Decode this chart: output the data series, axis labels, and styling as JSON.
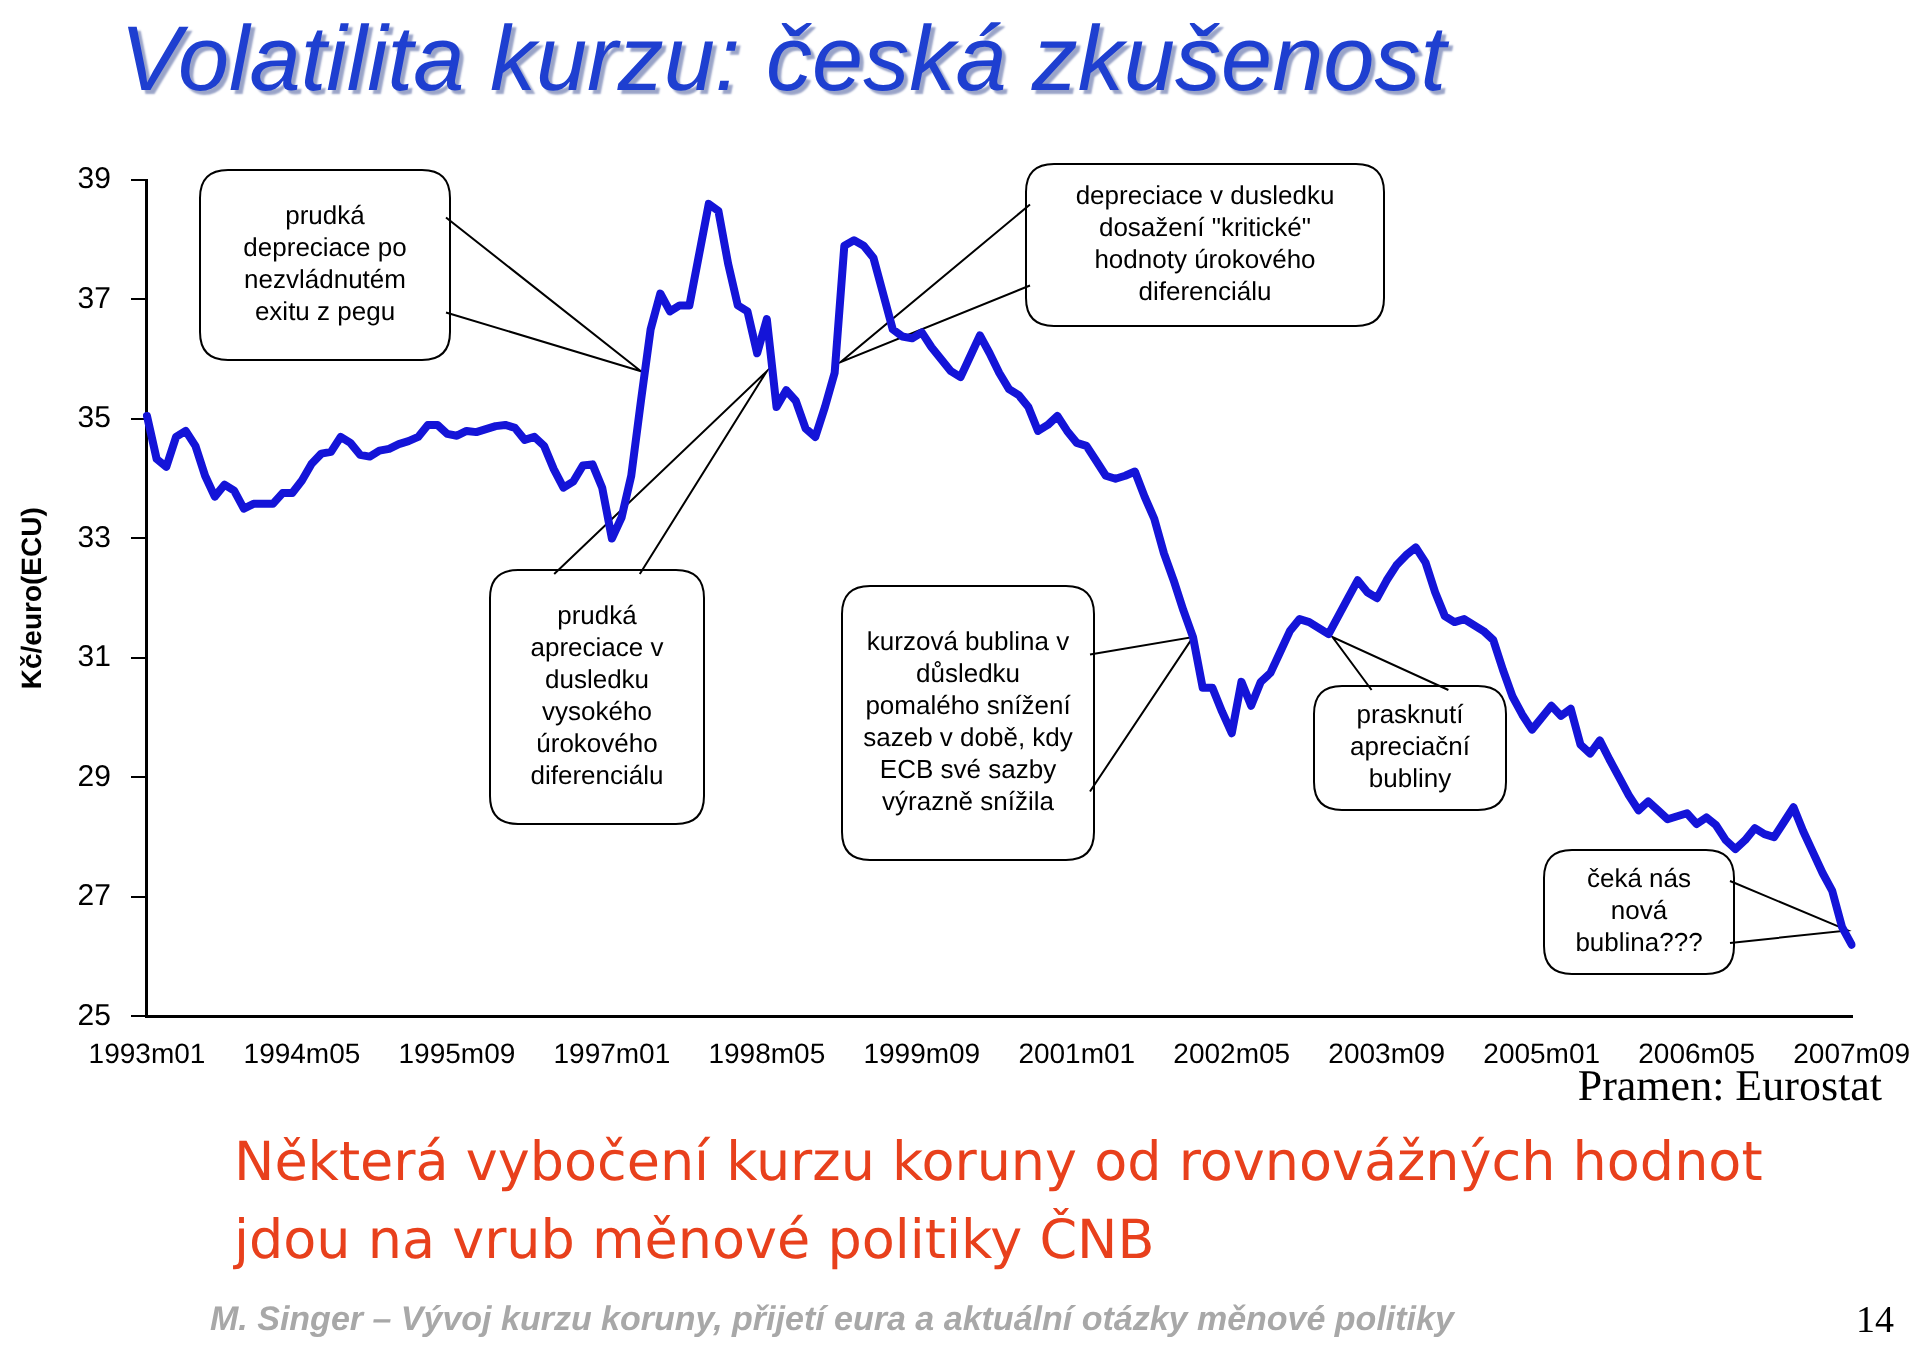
{
  "chart_data": {
    "type": "line",
    "title": "Volatilita kurzu: česká zkušenost",
    "ylabel": "Kč/euro(ECU)",
    "categories": [
      "1993m01",
      null,
      null,
      null,
      null,
      null,
      null,
      null,
      null,
      null,
      null,
      null,
      null,
      null,
      null,
      null,
      "1994m05",
      null,
      null,
      null,
      null,
      null,
      null,
      null,
      null,
      null,
      null,
      null,
      null,
      null,
      null,
      null,
      "1995m09",
      null,
      null,
      null,
      null,
      null,
      null,
      null,
      null,
      null,
      null,
      null,
      null,
      null,
      null,
      null,
      "1997m01",
      null,
      null,
      null,
      null,
      null,
      null,
      null,
      null,
      null,
      null,
      null,
      null,
      null,
      null,
      null,
      "1998m05",
      null,
      null,
      null,
      null,
      null,
      null,
      null,
      null,
      null,
      null,
      null,
      null,
      null,
      null,
      null,
      "1999m09",
      null,
      null,
      null,
      null,
      null,
      null,
      null,
      null,
      null,
      null,
      null,
      null,
      null,
      null,
      null,
      "2001m01",
      null,
      null,
      null,
      null,
      null,
      null,
      null,
      null,
      null,
      null,
      null,
      null,
      null,
      null,
      null,
      "2002m05",
      null,
      null,
      null,
      null,
      null,
      null,
      null,
      null,
      null,
      null,
      null,
      null,
      null,
      null,
      null,
      "2003m09",
      null,
      null,
      null,
      null,
      null,
      null,
      null,
      null,
      null,
      null,
      null,
      null,
      null,
      null,
      null,
      "2005m01",
      null,
      null,
      null,
      null,
      null,
      null,
      null,
      null,
      null,
      null,
      null,
      null,
      null,
      null,
      null,
      "2006m05",
      null,
      null,
      null,
      null,
      null,
      null,
      null,
      null,
      null,
      null,
      null,
      null,
      null,
      null,
      null,
      "2007m09"
    ],
    "series": [
      {
        "color": "#1414d8",
        "values": [
          35.05,
          34.33,
          34.2,
          34.7,
          34.8,
          34.55,
          34.05,
          33.7,
          33.9,
          33.8,
          33.5,
          33.58,
          33.58,
          33.58,
          33.76,
          33.76,
          33.97,
          34.25,
          34.42,
          34.45,
          34.7,
          34.6,
          34.4,
          34.37,
          34.47,
          34.5,
          34.58,
          34.63,
          34.7,
          34.9,
          34.9,
          34.75,
          34.72,
          34.8,
          34.78,
          34.83,
          34.88,
          34.9,
          34.85,
          34.65,
          34.7,
          34.55,
          34.16,
          33.85,
          33.95,
          34.22,
          34.24,
          33.85,
          33.0,
          33.35,
          34.05,
          35.3,
          36.5,
          37.1,
          36.8,
          36.9,
          36.9,
          37.75,
          38.6,
          38.48,
          37.6,
          36.9,
          36.8,
          36.1,
          36.67,
          35.2,
          35.48,
          35.3,
          34.84,
          34.7,
          35.2,
          35.77,
          37.9,
          37.99,
          37.9,
          37.7,
          37.1,
          36.5,
          36.38,
          36.35,
          36.45,
          36.2,
          36.0,
          35.8,
          35.7,
          36.05,
          36.4,
          36.1,
          35.77,
          35.5,
          35.4,
          35.2,
          34.8,
          34.9,
          35.05,
          34.8,
          34.6,
          34.55,
          34.3,
          34.05,
          34.0,
          34.05,
          34.12,
          33.7,
          33.33,
          32.75,
          32.3,
          31.8,
          31.35,
          30.5,
          30.5,
          30.1,
          29.74,
          30.6,
          30.2,
          30.6,
          30.75,
          31.1,
          31.45,
          31.65,
          31.6,
          31.5,
          31.4,
          31.7,
          32.0,
          32.3,
          32.1,
          32.0,
          32.3,
          32.55,
          32.72,
          32.85,
          32.6,
          32.1,
          31.7,
          31.6,
          31.65,
          31.55,
          31.45,
          31.3,
          30.8,
          30.35,
          30.05,
          29.8,
          30.0,
          30.2,
          30.03,
          30.15,
          29.55,
          29.4,
          29.62,
          29.3,
          29.0,
          28.7,
          28.45,
          28.6,
          28.45,
          28.3,
          28.35,
          28.4,
          28.22,
          28.33,
          28.2,
          27.95,
          27.8,
          27.95,
          28.15,
          28.05,
          28.0,
          28.25,
          28.5,
          28.1,
          27.75,
          27.4,
          27.1,
          26.5,
          26.2
        ]
      }
    ],
    "ylim": [
      25,
      39
    ],
    "yticks": [
      25,
      27,
      29,
      31,
      33,
      35,
      37,
      39
    ],
    "marker": "none",
    "line_style": "solid",
    "legend": false,
    "annotations": [
      "prudká depreciace po nezvládnutém exitu z pegu",
      "prudká apreciace v dusledku vysokého úrokového diferenciálu",
      "kurzová bublina v důsledku pomalého snížení sazeb v době, kdy ECB své sazby výrazně snížila",
      "depreciace v dusledku dosažení \"kritické\" hodnoty úrokového diferenciálu",
      "prasknutí apreciační bubliny",
      "čeká nás nová bublina???",
      "Pramen: Eurostat",
      "Některá vybočení kurzu koruny od rovnovážných hodnot jdou na vrub měnové politiky ČNB",
      "M. Singer – Vývoj kurzu koruny, přijetí eura a aktuální otázky měnové politiky",
      "14"
    ]
  }
}
